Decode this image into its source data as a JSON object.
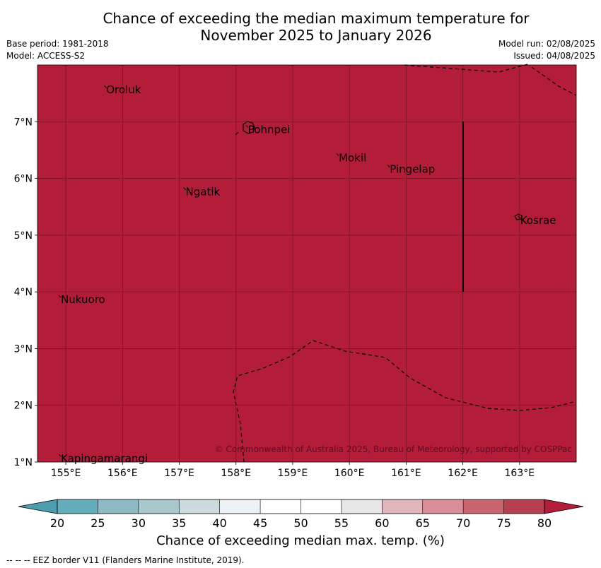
{
  "title_lines": [
    "Chance of exceeding the median maximum temperature for",
    "November 2025 to January 2026"
  ],
  "meta_left": [
    "Base period: 1981-2018",
    "Model: ACCESS-S2"
  ],
  "meta_right": [
    "Model run: 02/08/2025",
    "Issued: 04/08/2025"
  ],
  "map": {
    "fill_color": "#b31d39",
    "lon_range": [
      154.5,
      164.0
    ],
    "lat_range": [
      1.0,
      8.0
    ],
    "lon_ticks": [
      "155°E",
      "156°E",
      "157°E",
      "158°E",
      "159°E",
      "160°E",
      "161°E",
      "162°E",
      "163°E"
    ],
    "lat_ticks": [
      "1°N",
      "2°N",
      "3°N",
      "4°N",
      "5°N",
      "6°N",
      "7°N"
    ],
    "places": [
      {
        "name": "Oroluk",
        "lon": 155.7,
        "lat": 7.6
      },
      {
        "name": "Pohnpei",
        "lon": 158.2,
        "lat": 6.9
      },
      {
        "name": "Mokil",
        "lon": 159.8,
        "lat": 6.4
      },
      {
        "name": "Pingelap",
        "lon": 160.7,
        "lat": 6.2
      },
      {
        "name": "Ngatik",
        "lon": 157.1,
        "lat": 5.8
      },
      {
        "name": "Kosrae",
        "lon": 163.0,
        "lat": 5.3
      },
      {
        "name": "Nukuoro",
        "lon": 154.9,
        "lat": 3.9
      },
      {
        "name": "Kapingamarangi",
        "lon": 154.9,
        "lat": 1.1
      }
    ],
    "copyright": "© Commonwealth of Australia 2025, Bureau of Meteorology, supported by COSPPac"
  },
  "colorbar": {
    "ticks": [
      "20",
      "25",
      "30",
      "35",
      "40",
      "45",
      "50",
      "55",
      "60",
      "65",
      "70",
      "75",
      "80"
    ],
    "colors": [
      "#64adbb",
      "#8bbac4",
      "#a9c8cc",
      "#cadadd",
      "#ecf1f4",
      "#ffffff",
      "#ffffff",
      "#e6e6e6",
      "#e0b6bd",
      "#d98d96",
      "#c9636d",
      "#b83f50"
    ],
    "under_color": "#4e9fad",
    "over_color": "#b31d39",
    "label": "Chance of exceeding median max. temp. (%)"
  },
  "footnote": "--  --  -- EEZ border V11 (Flanders Marine Institute, 2019)."
}
